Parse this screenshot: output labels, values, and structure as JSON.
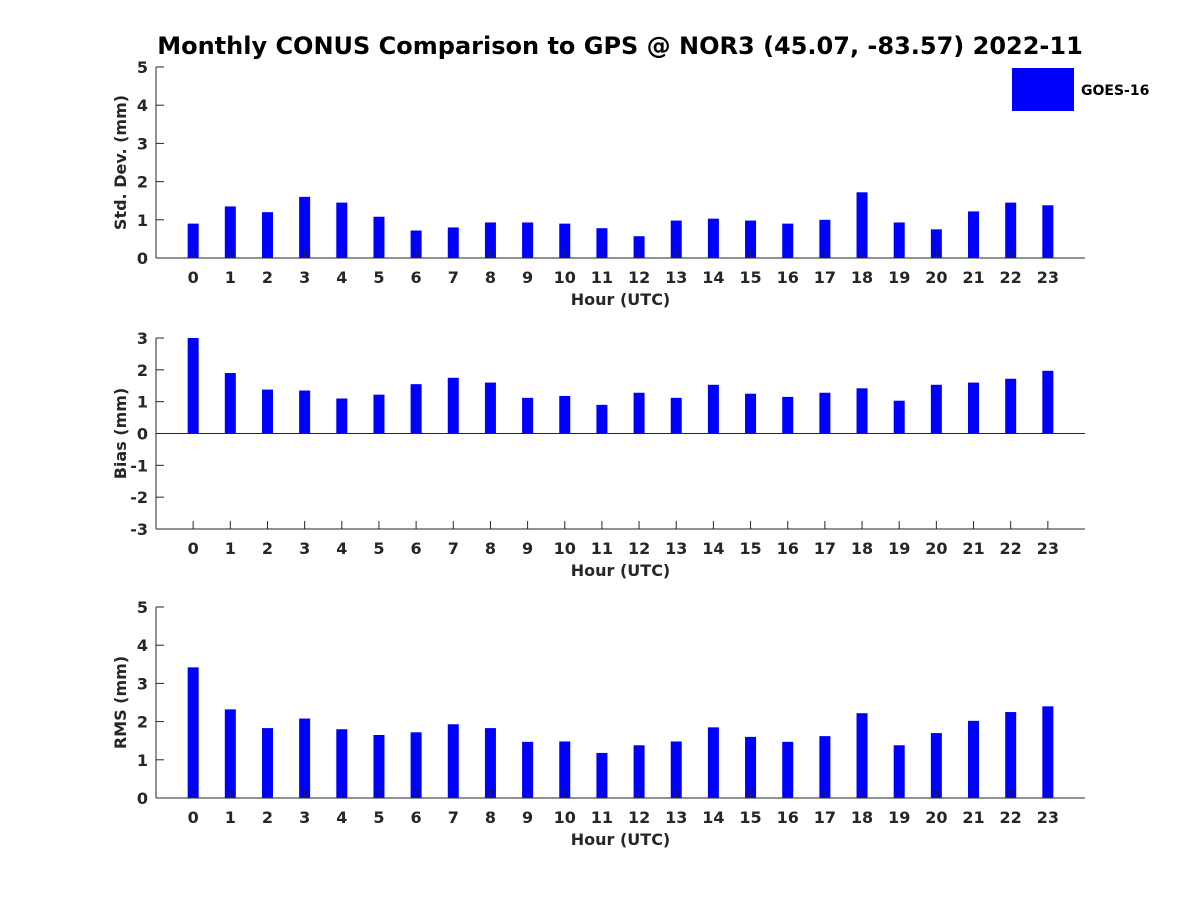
{
  "figure": {
    "title": "Monthly CONUS Comparison to GPS @ NOR3 (45.07, -83.57) 2022-11",
    "legend": {
      "label": "GOES-16",
      "color": "#0000ff",
      "placement": "top-right"
    }
  },
  "chart_data": [
    {
      "type": "bar",
      "series": [
        {
          "name": "GOES-16",
          "values": [
            0.9,
            1.35,
            1.2,
            1.6,
            1.45,
            1.08,
            0.72,
            0.8,
            0.93,
            0.93,
            0.9,
            0.78,
            0.57,
            0.98,
            1.03,
            0.98,
            0.9,
            1.0,
            1.72,
            0.93,
            0.75,
            1.22,
            1.45,
            1.38
          ]
        }
      ],
      "categories": [
        "0",
        "1",
        "2",
        "3",
        "4",
        "5",
        "6",
        "7",
        "8",
        "9",
        "10",
        "11",
        "12",
        "13",
        "14",
        "15",
        "16",
        "17",
        "18",
        "19",
        "20",
        "21",
        "22",
        "23"
      ],
      "xlabel": "Hour (UTC)",
      "ylabel": "Std. Dev. (mm)",
      "ylim": [
        0,
        5
      ],
      "yticks": [
        "0",
        "1",
        "2",
        "3",
        "4",
        "5"
      ],
      "color": "#0000ff"
    },
    {
      "type": "bar",
      "series": [
        {
          "name": "GOES-16",
          "values": [
            3.0,
            1.9,
            1.38,
            1.35,
            1.1,
            1.22,
            1.55,
            1.75,
            1.6,
            1.12,
            1.18,
            0.9,
            1.28,
            1.12,
            1.53,
            1.25,
            1.15,
            1.28,
            1.42,
            1.03,
            1.53,
            1.6,
            1.72,
            1.97
          ]
        }
      ],
      "categories": [
        "0",
        "1",
        "2",
        "3",
        "4",
        "5",
        "6",
        "7",
        "8",
        "9",
        "10",
        "11",
        "12",
        "13",
        "14",
        "15",
        "16",
        "17",
        "18",
        "19",
        "20",
        "21",
        "22",
        "23"
      ],
      "xlabel": "Hour (UTC)",
      "ylabel": "Bias (mm)",
      "ylim": [
        -3,
        3
      ],
      "yticks": [
        "-3",
        "-2",
        "-1",
        "0",
        "1",
        "2",
        "3"
      ],
      "color": "#0000ff"
    },
    {
      "type": "bar",
      "series": [
        {
          "name": "GOES-16",
          "values": [
            3.42,
            2.32,
            1.83,
            2.08,
            1.8,
            1.65,
            1.72,
            1.93,
            1.83,
            1.47,
            1.48,
            1.18,
            1.38,
            1.48,
            1.85,
            1.6,
            1.47,
            1.62,
            2.22,
            1.38,
            1.7,
            2.02,
            2.25,
            2.4
          ]
        }
      ],
      "categories": [
        "0",
        "1",
        "2",
        "3",
        "4",
        "5",
        "6",
        "7",
        "8",
        "9",
        "10",
        "11",
        "12",
        "13",
        "14",
        "15",
        "16",
        "17",
        "18",
        "19",
        "20",
        "21",
        "22",
        "23"
      ],
      "xlabel": "Hour (UTC)",
      "ylabel": "RMS (mm)",
      "ylim": [
        0,
        5
      ],
      "yticks": [
        "0",
        "1",
        "2",
        "3",
        "4",
        "5"
      ],
      "color": "#0000ff"
    }
  ]
}
